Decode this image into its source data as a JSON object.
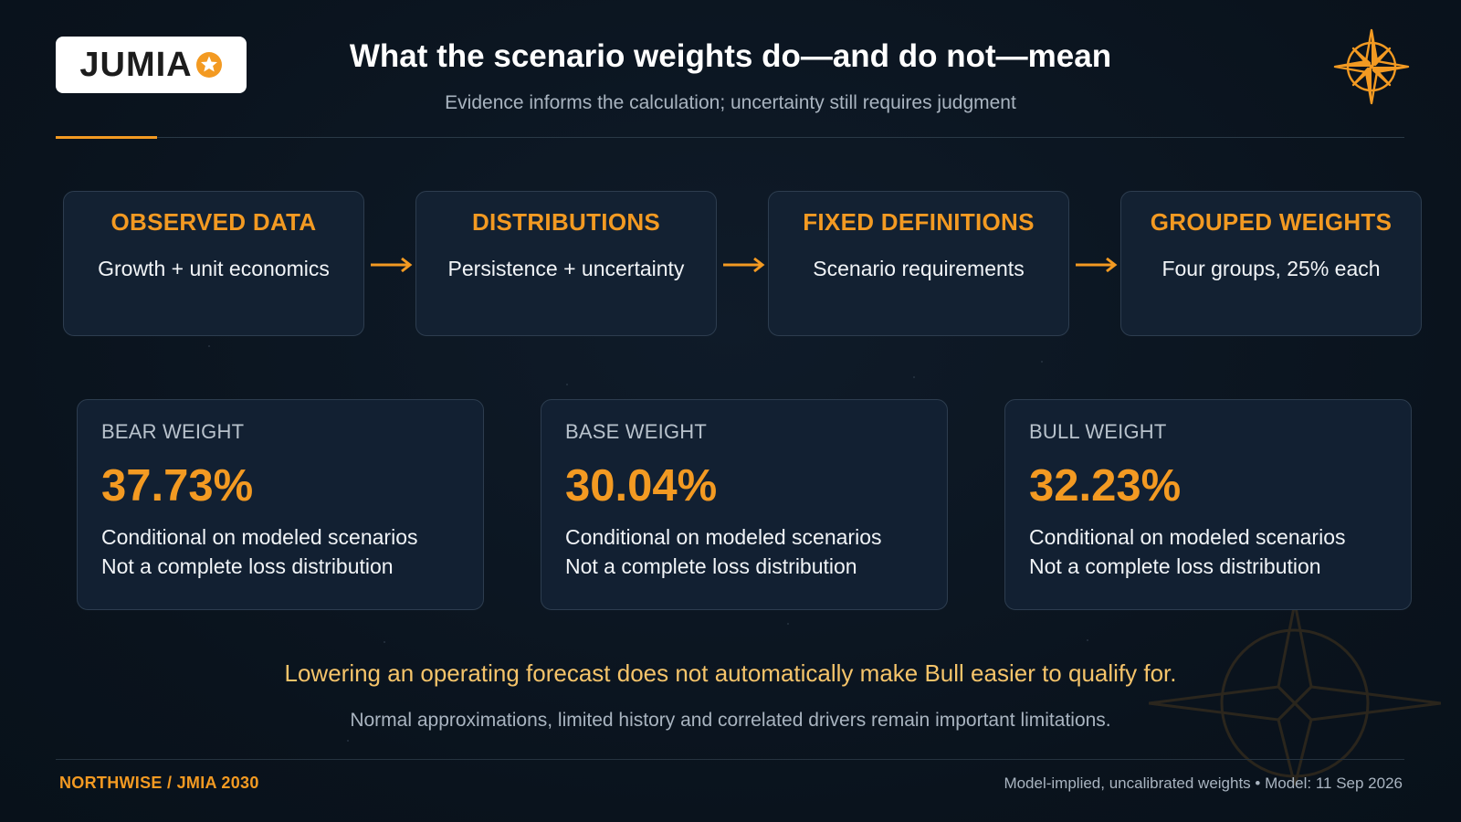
{
  "brand": {
    "logo_text": "JUMIA",
    "accent_color": "#f39a22",
    "icons": [
      "star-badge-icon",
      "compass-rose-icon"
    ]
  },
  "header": {
    "title": "What the scenario weights do—and do not—mean",
    "subtitle": "Evidence informs the calculation; uncertainty still requires judgment"
  },
  "flow": {
    "steps": [
      {
        "title": "OBSERVED DATA",
        "text": "Growth + unit economics"
      },
      {
        "title": "DISTRIBUTIONS",
        "text": "Persistence + uncertainty"
      },
      {
        "title": "FIXED DEFINITIONS",
        "text": "Scenario requirements"
      },
      {
        "title": "GROUPED WEIGHTS",
        "text": "Four groups, 25% each"
      }
    ]
  },
  "weights": [
    {
      "label": "BEAR WEIGHT",
      "value": "37.73%",
      "note1": "Conditional on modeled scenarios",
      "note2": "Not a complete loss distribution"
    },
    {
      "label": "BASE WEIGHT",
      "value": "30.04%",
      "note1": "Conditional on modeled scenarios",
      "note2": "Not a complete loss distribution"
    },
    {
      "label": "BULL WEIGHT",
      "value": "32.23%",
      "note1": "Conditional on modeled scenarios",
      "note2": "Not a complete loss distribution"
    }
  ],
  "takeaway": "Lowering an operating forecast does not automatically make Bull easier to qualify for.",
  "limitations": "Normal approximations, limited history and correlated drivers remain important limitations.",
  "footer": {
    "left": "NORTHWISE / JMIA 2030",
    "right": "Model-implied, uncalibrated weights • Model: 11 Sep 2026"
  }
}
